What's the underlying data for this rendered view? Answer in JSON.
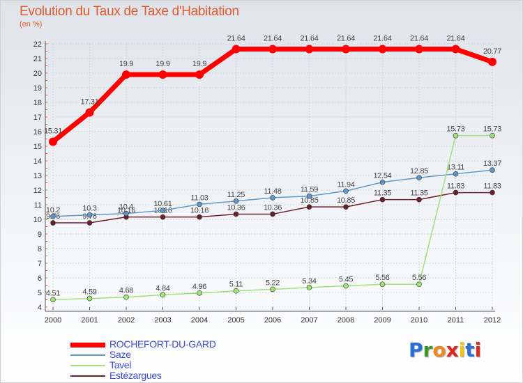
{
  "header": {
    "title": "Evolution du Taux de Taxe d'Habitation",
    "unit": "(en %)"
  },
  "logo": {
    "text": "Proxiti",
    "letter_colors": [
      "#2a6fd6",
      "#3a9a2e",
      "#f08a1c",
      "#e0261e",
      "#f2c514",
      "#2a6fd6",
      "#e0261e"
    ]
  },
  "colors": {
    "rochefort": "#ff0000",
    "saze": "#5f98c9",
    "tavel": "#9fe27a",
    "estezargues": "#6b2028"
  },
  "chart_data": {
    "type": "line",
    "title": "Evolution du Taux de Taxe d'Habitation",
    "ylabel": "(en %)",
    "xlabel": "",
    "x": [
      "2000",
      "2001",
      "2002",
      "2003",
      "2004",
      "2005",
      "2006",
      "2007",
      "2008",
      "2009",
      "2010",
      "2011",
      "2012"
    ],
    "ylim": [
      4,
      22
    ],
    "yticks": [
      "4",
      "5",
      "6",
      "7",
      "8",
      "9",
      "10",
      "11",
      "12",
      "13",
      "14",
      "15",
      "16",
      "17",
      "18",
      "19",
      "20",
      "21",
      "22"
    ],
    "grid": true,
    "legend_position": "bottom-left",
    "series": [
      {
        "name": "ROCHEFORT-DU-GARD",
        "color": "#ff0000",
        "values": [
          15.31,
          17.31,
          19.9,
          19.9,
          19.9,
          21.64,
          21.64,
          21.64,
          21.64,
          21.64,
          21.64,
          21.64,
          20.77
        ],
        "labels": [
          "15.31",
          "17.31",
          "19.9",
          "19.9",
          "19.9",
          "21.64",
          "21.64",
          "21.64",
          "21.64",
          "21.64",
          "21.64",
          "21.64",
          "20.77"
        ]
      },
      {
        "name": "Saze",
        "color": "#5f98c9",
        "values": [
          10.2,
          10.3,
          10.4,
          10.61,
          11.03,
          11.25,
          11.48,
          11.59,
          11.94,
          12.54,
          12.85,
          13.11,
          13.37
        ],
        "labels": [
          "10.2",
          "10.3",
          "10.4",
          "10.61",
          "11.03",
          "11.25",
          "11.48",
          "11.59",
          "11.94",
          "12.54",
          "12.85",
          "13.11",
          "13.37"
        ]
      },
      {
        "name": "Tavel",
        "color": "#9fe27a",
        "values": [
          4.51,
          4.59,
          4.68,
          4.84,
          4.96,
          5.11,
          5.22,
          5.34,
          5.45,
          5.56,
          5.56,
          15.73,
          15.73
        ],
        "labels": [
          "4.51",
          "4.59",
          "4.68",
          "4.84",
          "4.96",
          "5.11",
          "5.22",
          "5.34",
          "5.45",
          "5.56",
          "5.56",
          "15.73",
          "15.73"
        ]
      },
      {
        "name": "Estézargues",
        "color": "#6b2028",
        "values": [
          9.76,
          9.76,
          10.16,
          10.16,
          10.16,
          10.36,
          10.36,
          10.85,
          10.85,
          11.35,
          11.35,
          11.83,
          11.83
        ],
        "labels": [
          "9.76",
          "9.76",
          "10.16",
          "10.16",
          "10.16",
          "10.36",
          "10.36",
          "10.85",
          "10.85",
          "11.35",
          "11.35",
          "11.83",
          "11.83"
        ]
      }
    ]
  }
}
